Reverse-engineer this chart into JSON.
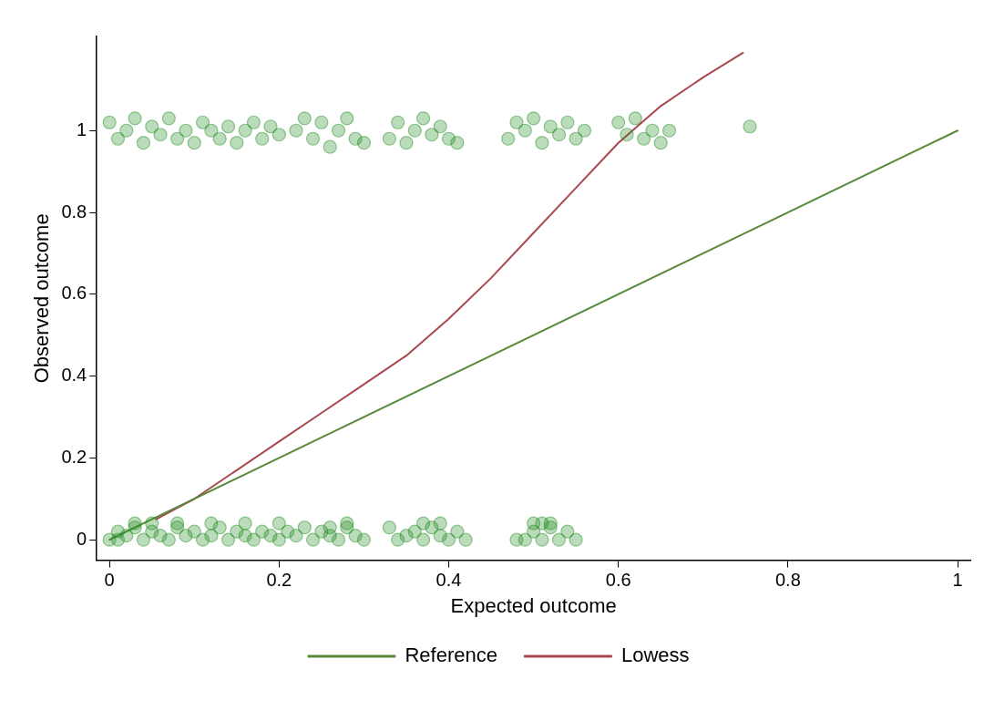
{
  "chart_data": {
    "type": "scatter",
    "xlabel": "Expected outcome",
    "ylabel": "Observed outcome",
    "xlim": [
      -0.015,
      1.015
    ],
    "ylim": [
      -0.05,
      1.23
    ],
    "xticks": [
      0,
      0.2,
      0.4,
      0.6,
      0.8,
      1
    ],
    "yticks": [
      0,
      0.2,
      0.4,
      0.6,
      0.8,
      1
    ],
    "grid": false,
    "legend": "bottom",
    "marker": "circle",
    "series": [
      {
        "type": "scatter",
        "color": "#1f8a1f",
        "x": [
          0.0,
          0.01,
          0.02,
          0.03,
          0.04,
          0.05,
          0.06,
          0.07,
          0.08,
          0.09,
          0.1,
          0.11,
          0.12,
          0.13,
          0.14,
          0.15,
          0.16,
          0.17,
          0.18,
          0.19,
          0.2,
          0.22,
          0.23,
          0.24,
          0.25,
          0.26,
          0.27,
          0.28,
          0.29,
          0.3,
          0.33,
          0.34,
          0.35,
          0.36,
          0.37,
          0.38,
          0.39,
          0.4,
          0.41,
          0.47,
          0.48,
          0.49,
          0.5,
          0.51,
          0.52,
          0.53,
          0.54,
          0.55,
          0.56,
          0.6,
          0.61,
          0.62,
          0.63,
          0.64,
          0.65,
          0.66,
          0.755,
          0.0,
          0.01,
          0.02,
          0.03,
          0.04,
          0.05,
          0.06,
          0.07,
          0.08,
          0.09,
          0.1,
          0.11,
          0.12,
          0.13,
          0.14,
          0.15,
          0.16,
          0.17,
          0.18,
          0.19,
          0.2,
          0.21,
          0.22,
          0.23,
          0.24,
          0.25,
          0.26,
          0.27,
          0.28,
          0.29,
          0.3,
          0.33,
          0.34,
          0.35,
          0.36,
          0.37,
          0.38,
          0.39,
          0.4,
          0.41,
          0.42,
          0.48,
          0.49,
          0.5,
          0.51,
          0.52,
          0.53,
          0.54,
          0.55,
          0.01,
          0.03,
          0.05,
          0.08,
          0.12,
          0.16,
          0.2,
          0.26,
          0.28,
          0.37,
          0.39,
          0.5,
          0.51,
          0.52
        ],
        "values": [
          1.02,
          0.98,
          1.0,
          1.03,
          0.97,
          1.01,
          0.99,
          1.03,
          0.98,
          1.0,
          0.97,
          1.02,
          1.0,
          0.98,
          1.01,
          0.97,
          1.0,
          1.02,
          0.98,
          1.01,
          0.99,
          1.0,
          1.03,
          0.98,
          1.02,
          0.96,
          1.0,
          1.03,
          0.98,
          0.97,
          0.98,
          1.02,
          0.97,
          1.0,
          1.03,
          0.99,
          1.01,
          0.98,
          0.97,
          0.98,
          1.02,
          1.0,
          1.03,
          0.97,
          1.01,
          0.99,
          1.02,
          0.98,
          1.0,
          1.02,
          0.99,
          1.03,
          0.98,
          1.0,
          0.97,
          1.0,
          1.01,
          0.0,
          0.02,
          0.01,
          0.03,
          0.0,
          0.02,
          0.01,
          0.0,
          0.03,
          0.01,
          0.02,
          0.0,
          0.01,
          0.03,
          0.0,
          0.02,
          0.01,
          0.0,
          0.02,
          0.01,
          0.0,
          0.02,
          0.01,
          0.03,
          0.0,
          0.02,
          0.01,
          0.0,
          0.03,
          0.01,
          0.0,
          0.03,
          0.0,
          0.01,
          0.02,
          0.0,
          0.03,
          0.01,
          0.0,
          0.02,
          0.0,
          0.0,
          0.0,
          0.02,
          0.0,
          0.03,
          0.0,
          0.02,
          0.0,
          0.0,
          0.04,
          0.04,
          0.04,
          0.04,
          0.04,
          0.04,
          0.03,
          0.04,
          0.04,
          0.04,
          0.04,
          0.04,
          0.04
        ]
      },
      {
        "type": "line",
        "name": "Reference",
        "color": "#5b8a3c",
        "marker": "none",
        "x": [
          0,
          1
        ],
        "values": [
          0,
          1
        ]
      },
      {
        "type": "line",
        "name": "Lowess",
        "color": "#a8484f",
        "marker": "none",
        "x": [
          0.055,
          0.1,
          0.15,
          0.2,
          0.25,
          0.3,
          0.35,
          0.4,
          0.45,
          0.5,
          0.55,
          0.6,
          0.65,
          0.7,
          0.747
        ],
        "values": [
          0.05,
          0.1,
          0.17,
          0.24,
          0.31,
          0.38,
          0.45,
          0.54,
          0.64,
          0.75,
          0.86,
          0.97,
          1.06,
          1.13,
          1.19
        ]
      }
    ]
  }
}
